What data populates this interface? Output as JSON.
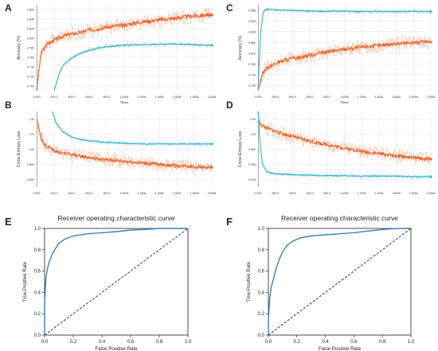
{
  "chart_data": [
    {
      "panel": "A",
      "type": "line",
      "title": "",
      "xlabel": "Step",
      "ylabel": "Accuracy (%)",
      "grid": true,
      "xlim": [
        0,
        2000
      ],
      "ylim": [
        0.7,
        0.87
      ],
      "x_ticks": [
        "0.000",
        "200.0",
        "400.0",
        "600.0",
        "800.0",
        "1.000k",
        "1.200k",
        "1.400k",
        "1.600k",
        "1.800k",
        "2.000k"
      ],
      "y_ticks": [
        "0.700",
        "0.720",
        "0.740",
        "0.760",
        "0.780",
        "0.800",
        "0.820",
        "0.840",
        "0.860"
      ],
      "series": [
        {
          "color": "#e8622c",
          "smoothed": [
            [
              0,
              0.7
            ],
            [
              50,
              0.775
            ],
            [
              100,
              0.79
            ],
            [
              200,
              0.8
            ],
            [
              300,
              0.808
            ],
            [
              400,
              0.812
            ],
            [
              500,
              0.815
            ],
            [
              600,
              0.82
            ],
            [
              700,
              0.822
            ],
            [
              800,
              0.826
            ],
            [
              900,
              0.828
            ],
            [
              1000,
              0.83
            ],
            [
              1100,
              0.833
            ],
            [
              1200,
              0.836
            ],
            [
              1300,
              0.838
            ],
            [
              1400,
              0.84
            ],
            [
              1500,
              0.842
            ],
            [
              1600,
              0.844
            ],
            [
              1700,
              0.846
            ],
            [
              1800,
              0.848
            ],
            [
              1900,
              0.849
            ],
            [
              2000,
              0.85
            ]
          ]
        },
        {
          "color": "#39b5c8",
          "smoothed": [
            [
              200,
              0.7
            ],
            [
              250,
              0.73
            ],
            [
              300,
              0.75
            ],
            [
              400,
              0.765
            ],
            [
              500,
              0.774
            ],
            [
              600,
              0.78
            ],
            [
              700,
              0.784
            ],
            [
              800,
              0.787
            ],
            [
              900,
              0.789
            ],
            [
              1000,
              0.79
            ],
            [
              1200,
              0.791
            ],
            [
              1400,
              0.792
            ],
            [
              1600,
              0.792
            ],
            [
              1800,
              0.791
            ],
            [
              2000,
              0.79
            ]
          ]
        }
      ]
    },
    {
      "panel": "C",
      "type": "line",
      "title": "",
      "xlabel": "Step",
      "ylabel": "Accuracy (%)",
      "grid": true,
      "xlim": [
        0,
        2000
      ],
      "ylim": [
        0.7,
        1.0
      ],
      "x_ticks": [
        "0.000",
        "200.0",
        "400.0",
        "600.0",
        "800.0",
        "1.000k",
        "1.200k",
        "1.400k",
        "1.600k",
        "1.800k",
        "2.000k"
      ],
      "y_ticks": [
        "0.700",
        "0.740",
        "0.780",
        "0.820",
        "0.860",
        "0.900",
        "0.940",
        "0.980"
      ],
      "series": [
        {
          "color": "#39b5c8",
          "smoothed": [
            [
              0,
              0.7
            ],
            [
              30,
              0.9
            ],
            [
              60,
              0.975
            ],
            [
              100,
              0.985
            ],
            [
              200,
              0.982
            ],
            [
              400,
              0.98
            ],
            [
              600,
              0.978
            ],
            [
              800,
              0.977
            ],
            [
              1000,
              0.978
            ],
            [
              1200,
              0.976
            ],
            [
              1400,
              0.977
            ],
            [
              1600,
              0.976
            ],
            [
              1800,
              0.977
            ],
            [
              2000,
              0.976
            ]
          ]
        },
        {
          "color": "#e8622c",
          "smoothed": [
            [
              0,
              0.7
            ],
            [
              50,
              0.76
            ],
            [
              100,
              0.78
            ],
            [
              200,
              0.795
            ],
            [
              300,
              0.805
            ],
            [
              400,
              0.812
            ],
            [
              500,
              0.818
            ],
            [
              600,
              0.824
            ],
            [
              700,
              0.83
            ],
            [
              800,
              0.836
            ],
            [
              900,
              0.84
            ],
            [
              1000,
              0.845
            ],
            [
              1100,
              0.848
            ],
            [
              1200,
              0.852
            ],
            [
              1300,
              0.856
            ],
            [
              1400,
              0.858
            ],
            [
              1500,
              0.861
            ],
            [
              1600,
              0.864
            ],
            [
              1700,
              0.866
            ],
            [
              1800,
              0.868
            ],
            [
              1900,
              0.869
            ],
            [
              2000,
              0.87
            ]
          ]
        }
      ]
    },
    {
      "panel": "B",
      "type": "line",
      "title": "",
      "xlabel": "",
      "ylabel": "Cross-Entropy Loss",
      "grid": true,
      "xlim": [
        0,
        2000
      ],
      "ylim": [
        0.6,
        1.6
      ],
      "x_ticks": [
        "0.000",
        "200.0",
        "400.0",
        "600.0",
        "800.0",
        "1.000k",
        "1.200k",
        "1.400k",
        "1.600k",
        "1.800k",
        "2.000k"
      ],
      "y_ticks": [
        "0.600",
        "0.800",
        "1.00",
        "1.20",
        "1.40"
      ],
      "series": [
        {
          "color": "#e8622c",
          "smoothed": [
            [
              0,
              1.5
            ],
            [
              50,
              1.25
            ],
            [
              100,
              1.15
            ],
            [
              200,
              1.08
            ],
            [
              300,
              1.05
            ],
            [
              400,
              1.03
            ],
            [
              500,
              1.01
            ],
            [
              600,
              0.99
            ],
            [
              700,
              0.97
            ],
            [
              800,
              0.96
            ],
            [
              900,
              0.95
            ],
            [
              1000,
              0.94
            ],
            [
              1100,
              0.93
            ],
            [
              1200,
              0.92
            ],
            [
              1300,
              0.91
            ],
            [
              1400,
              0.9
            ],
            [
              1500,
              0.89
            ],
            [
              1600,
              0.88
            ],
            [
              1700,
              0.88
            ],
            [
              1800,
              0.87
            ],
            [
              1900,
              0.86
            ],
            [
              2000,
              0.86
            ]
          ]
        },
        {
          "color": "#39b5c8",
          "smoothed": [
            [
              180,
              1.6
            ],
            [
              220,
              1.45
            ],
            [
              300,
              1.33
            ],
            [
              400,
              1.26
            ],
            [
              500,
              1.23
            ],
            [
              600,
              1.21
            ],
            [
              700,
              1.2
            ],
            [
              800,
              1.19
            ],
            [
              1000,
              1.18
            ],
            [
              1200,
              1.17
            ],
            [
              1400,
              1.17
            ],
            [
              1600,
              1.17
            ],
            [
              1800,
              1.17
            ],
            [
              2000,
              1.17
            ]
          ]
        }
      ]
    },
    {
      "panel": "D",
      "type": "line",
      "title": "",
      "xlabel": "",
      "ylabel": "Cross-Entropy Loss",
      "grid": true,
      "xlim": [
        0,
        2000
      ],
      "ylim": [
        0.0,
        1.6
      ],
      "x_ticks": [
        "0.000",
        "200.0",
        "400.0",
        "600.0",
        "800.0",
        "1.000k",
        "1.200k",
        "1.400k",
        "1.600k",
        "1.800k",
        "2.000k"
      ],
      "y_ticks": [
        "0.000",
        "0.400",
        "0.800",
        "1.20",
        "1.60"
      ],
      "series": [
        {
          "color": "#e8622c",
          "smoothed": [
            [
              0,
              1.4
            ],
            [
              50,
              1.3
            ],
            [
              100,
              1.25
            ],
            [
              200,
              1.18
            ],
            [
              300,
              1.12
            ],
            [
              400,
              1.07
            ],
            [
              500,
              1.02
            ],
            [
              600,
              0.97
            ],
            [
              700,
              0.93
            ],
            [
              800,
              0.9
            ],
            [
              900,
              0.86
            ],
            [
              1000,
              0.82
            ],
            [
              1100,
              0.79
            ],
            [
              1200,
              0.76
            ],
            [
              1300,
              0.73
            ],
            [
              1400,
              0.71
            ],
            [
              1500,
              0.68
            ],
            [
              1600,
              0.66
            ],
            [
              1700,
              0.64
            ],
            [
              1800,
              0.62
            ],
            [
              1900,
              0.6
            ],
            [
              2000,
              0.59
            ]
          ]
        },
        {
          "color": "#39b5c8",
          "smoothed": [
            [
              0,
              1.6
            ],
            [
              20,
              1.0
            ],
            [
              50,
              0.5
            ],
            [
              100,
              0.32
            ],
            [
              200,
              0.28
            ],
            [
              400,
              0.26
            ],
            [
              600,
              0.25
            ],
            [
              800,
              0.24
            ],
            [
              1000,
              0.24
            ],
            [
              1200,
              0.23
            ],
            [
              1400,
              0.23
            ],
            [
              1600,
              0.23
            ],
            [
              1800,
              0.22
            ],
            [
              2000,
              0.22
            ]
          ]
        }
      ]
    },
    {
      "panel": "E",
      "type": "line",
      "title": "Receiver operating characteristic curve",
      "xlabel": "False Positive Rate",
      "ylabel": "True Positive Rate",
      "grid": false,
      "xlim": [
        0,
        1
      ],
      "ylim": [
        0,
        1
      ],
      "x_ticks": [
        "0.0",
        "0.2",
        "0.4",
        "0.6",
        "0.8",
        "1.0"
      ],
      "y_ticks": [
        "0.0",
        "0.2",
        "0.4",
        "0.6",
        "0.8",
        "1.0"
      ],
      "series": [
        {
          "style": "solid",
          "color": "#3b7fbf",
          "points": [
            [
              0,
              0
            ],
            [
              0,
              0.3
            ],
            [
              0.01,
              0.55
            ],
            [
              0.02,
              0.62
            ],
            [
              0.03,
              0.68
            ],
            [
              0.05,
              0.75
            ],
            [
              0.07,
              0.8
            ],
            [
              0.1,
              0.86
            ],
            [
              0.14,
              0.9
            ],
            [
              0.2,
              0.93
            ],
            [
              0.3,
              0.95
            ],
            [
              0.4,
              0.96
            ],
            [
              0.5,
              0.97
            ],
            [
              0.6,
              0.985
            ],
            [
              0.7,
              0.99
            ],
            [
              0.8,
              1.0
            ],
            [
              1.0,
              1.0
            ]
          ]
        },
        {
          "style": "dashed",
          "color": "#222222",
          "points": [
            [
              0,
              0
            ],
            [
              1,
              1
            ]
          ]
        }
      ]
    },
    {
      "panel": "F",
      "type": "line",
      "title": "Receiver operating characteristic curve",
      "xlabel": "False Positive Rate",
      "ylabel": "True Positive Rate",
      "grid": false,
      "xlim": [
        0,
        1
      ],
      "ylim": [
        0,
        1
      ],
      "x_ticks": [
        "0.0",
        "0.2",
        "0.4",
        "0.6",
        "0.8",
        "1.0"
      ],
      "y_ticks": [
        "0.0",
        "0.2",
        "0.4",
        "0.6",
        "0.8",
        "1.0"
      ],
      "series": [
        {
          "style": "solid",
          "color": "#3b7fbf",
          "points": [
            [
              0,
              0
            ],
            [
              0,
              0.15
            ],
            [
              0.01,
              0.35
            ],
            [
              0.02,
              0.45
            ],
            [
              0.04,
              0.55
            ],
            [
              0.06,
              0.65
            ],
            [
              0.08,
              0.72
            ],
            [
              0.1,
              0.78
            ],
            [
              0.13,
              0.84
            ],
            [
              0.17,
              0.88
            ],
            [
              0.22,
              0.91
            ],
            [
              0.3,
              0.93
            ],
            [
              0.4,
              0.94
            ],
            [
              0.5,
              0.95
            ],
            [
              0.6,
              0.96
            ],
            [
              0.7,
              0.975
            ],
            [
              0.8,
              0.99
            ],
            [
              0.9,
              1.0
            ],
            [
              1.0,
              1.0
            ]
          ]
        },
        {
          "style": "dashed",
          "color": "#222222",
          "points": [
            [
              0,
              0
            ],
            [
              1,
              1
            ]
          ]
        }
      ]
    }
  ]
}
